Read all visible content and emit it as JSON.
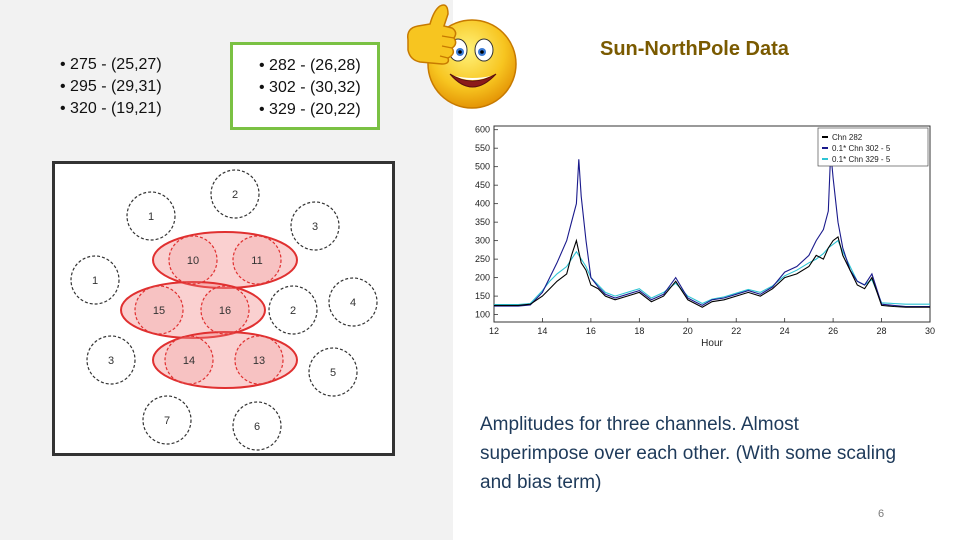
{
  "left_list": [
    "• 275 - (25,27)",
    "• 295 - (29,31)",
    "• 320 - (19,21)"
  ],
  "boxed_list": [
    "• 282 - (26,28)",
    "• 302 - (30,32)",
    "• 329 - (20,22)"
  ],
  "title": "Sun-NorthPole Data",
  "caption": "Amplitudes for three channels. Almost superimpose over each other. (With some scaling and bias term)",
  "page_number": "6",
  "diagram": {
    "nodes": [
      {
        "label": "2",
        "highlighted": false
      },
      {
        "label": "1",
        "highlighted": false
      },
      {
        "label": "3",
        "highlighted": false
      },
      {
        "label": "10",
        "highlighted": true
      },
      {
        "label": "11",
        "highlighted": true
      },
      {
        "label": "1",
        "highlighted": false
      },
      {
        "label": "15",
        "highlighted": true
      },
      {
        "label": "16",
        "highlighted": true
      },
      {
        "label": "2",
        "highlighted": false
      },
      {
        "label": "4",
        "highlighted": false
      },
      {
        "label": "3",
        "highlighted": false
      },
      {
        "label": "14",
        "highlighted": true
      },
      {
        "label": "13",
        "highlighted": true
      },
      {
        "label": "5",
        "highlighted": false
      },
      {
        "label": "7",
        "highlighted": false
      },
      {
        "label": "6",
        "highlighted": false
      }
    ],
    "highlight_color": "#e03030"
  },
  "chart_data": {
    "type": "line",
    "title": "",
    "xlabel": "Hour",
    "ylabel": "",
    "xlim": [
      12,
      30
    ],
    "ylim": [
      80,
      610
    ],
    "x_ticks": [
      "12",
      "14",
      "16",
      "18",
      "20",
      "22",
      "24",
      "26",
      "28",
      "30"
    ],
    "y_ticks": [
      "100",
      "150",
      "200",
      "250",
      "300",
      "350",
      "400",
      "450",
      "500",
      "550",
      "600"
    ],
    "legend": [
      "Chn 282",
      "0.1* Chn 302 - 5",
      "0.1* Chn 329 - 5"
    ],
    "legend_position": "top-right",
    "series": [
      {
        "name": "Chn 282",
        "color": "#000000",
        "x": [
          12,
          13,
          13.5,
          14,
          14.3,
          14.6,
          15,
          15.2,
          15.4,
          15.6,
          15.8,
          16,
          16.3,
          16.6,
          17,
          17.5,
          18,
          18.5,
          19,
          19.5,
          20,
          20.3,
          20.6,
          21,
          21.5,
          22,
          22.5,
          23,
          23.5,
          24,
          24.5,
          25,
          25.3,
          25.6,
          25.8,
          26,
          26.2,
          26.4,
          26.7,
          27,
          27.3,
          27.6,
          28,
          28.5,
          29,
          30
        ],
        "y": [
          125,
          125,
          128,
          150,
          170,
          190,
          210,
          260,
          300,
          240,
          220,
          180,
          170,
          150,
          140,
          150,
          160,
          135,
          150,
          190,
          140,
          130,
          120,
          135,
          140,
          150,
          160,
          150,
          170,
          200,
          210,
          230,
          260,
          250,
          280,
          300,
          310,
          260,
          220,
          180,
          170,
          200,
          125,
          122,
          120,
          120
        ]
      },
      {
        "name": "0.1* Chn 302 - 5",
        "color": "#1a1a8c",
        "x": [
          12,
          13,
          13.5,
          14,
          14.3,
          14.6,
          15,
          15.2,
          15.4,
          15.5,
          15.6,
          15.8,
          16,
          16.3,
          16.6,
          17,
          17.5,
          18,
          18.5,
          19,
          19.5,
          20,
          20.3,
          20.6,
          21,
          21.5,
          22,
          22.5,
          23,
          23.5,
          24,
          24.5,
          25,
          25.3,
          25.6,
          25.8,
          25.9,
          26,
          26.2,
          26.4,
          26.7,
          27,
          27.3,
          27.6,
          28,
          28.5,
          29,
          30
        ],
        "y": [
          123,
          123,
          126,
          160,
          200,
          240,
          300,
          350,
          400,
          520,
          420,
          300,
          200,
          175,
          155,
          145,
          155,
          165,
          140,
          155,
          200,
          145,
          135,
          125,
          140,
          145,
          155,
          165,
          155,
          175,
          215,
          230,
          260,
          300,
          330,
          380,
          540,
          470,
          350,
          280,
          220,
          190,
          180,
          210,
          128,
          125,
          122,
          122
        ]
      },
      {
        "name": "0.1* Chn 329 - 5",
        "color": "#2ec4d4",
        "x": [
          12,
          13,
          13.5,
          14,
          14.3,
          14.6,
          15,
          15.2,
          15.4,
          15.6,
          15.8,
          16,
          16.3,
          16.6,
          17,
          17.5,
          18,
          18.5,
          19,
          19.5,
          20,
          20.3,
          20.6,
          21,
          21.5,
          22,
          22.5,
          23,
          23.5,
          24,
          24.5,
          25,
          25.3,
          25.6,
          25.8,
          26,
          26.2,
          26.4,
          26.7,
          27,
          27.3,
          27.6,
          28,
          28.5,
          29,
          30
        ],
        "y": [
          127,
          127,
          130,
          165,
          190,
          210,
          230,
          250,
          270,
          250,
          230,
          200,
          180,
          160,
          150,
          160,
          170,
          145,
          160,
          185,
          150,
          140,
          130,
          142,
          148,
          158,
          168,
          160,
          178,
          205,
          220,
          240,
          250,
          265,
          280,
          290,
          300,
          270,
          230,
          190,
          180,
          195,
          132,
          130,
          128,
          128
        ]
      }
    ]
  }
}
